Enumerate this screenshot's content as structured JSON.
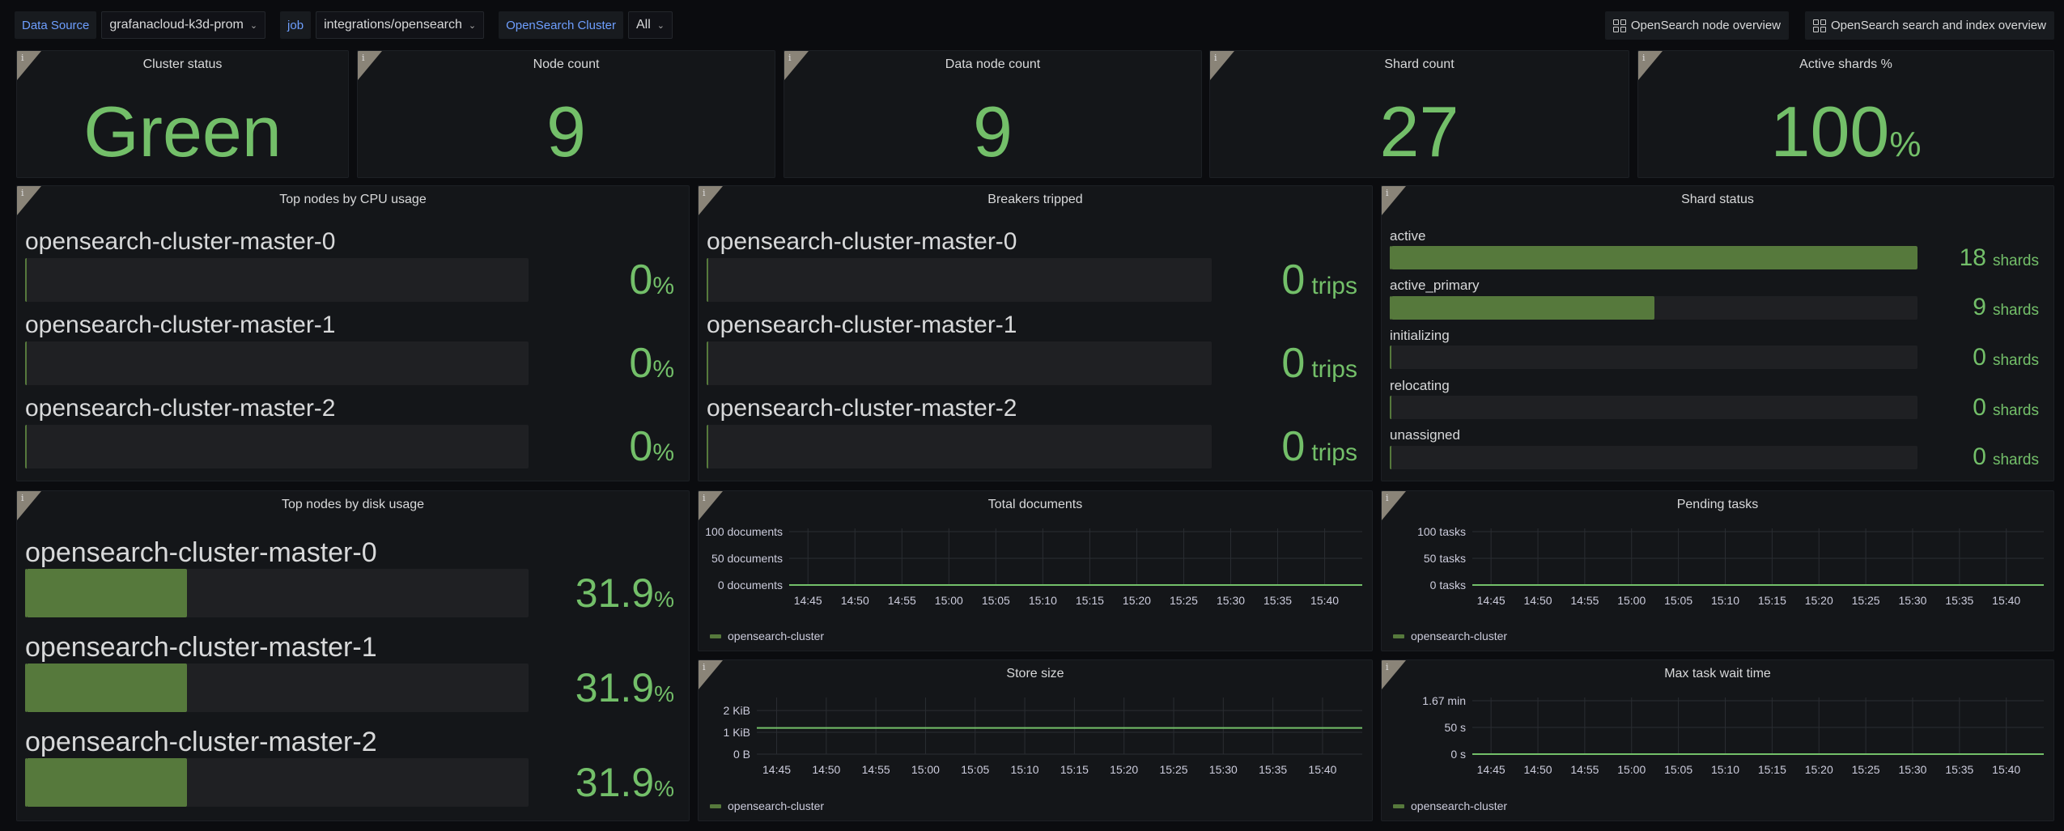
{
  "variables": [
    {
      "label": "Data Source",
      "value": "grafanacloud-k3d-prom"
    },
    {
      "label": "job",
      "value": "integrations/opensearch"
    },
    {
      "label": "OpenSearch Cluster",
      "value": "All"
    }
  ],
  "links": [
    {
      "label": "OpenSearch node overview",
      "icon": "dashboard-grid-icon"
    },
    {
      "label": "OpenSearch search and index overview",
      "icon": "dashboard-grid-icon"
    }
  ],
  "colors": {
    "value": "#73bf69",
    "bar_fill": "#56793c",
    "bar_track": "#1f2023",
    "panel": "#141619",
    "background": "#0b0c0f",
    "variable_label": "#6e9fff",
    "series": "#73bf69"
  },
  "info_icon": "i",
  "stats": [
    {
      "title": "Cluster status",
      "value": "Green",
      "unit": ""
    },
    {
      "title": "Node count",
      "value": "9",
      "unit": ""
    },
    {
      "title": "Data node count",
      "value": "9",
      "unit": ""
    },
    {
      "title": "Shard count",
      "value": "27",
      "unit": ""
    },
    {
      "title": "Active shards %",
      "value": "100",
      "unit": "%"
    }
  ],
  "cpu": {
    "title": "Top nodes by CPU usage",
    "max": 100,
    "rows": [
      {
        "name": "opensearch-cluster-master-0",
        "value": 0,
        "display": "0",
        "unit": "%"
      },
      {
        "name": "opensearch-cluster-master-1",
        "value": 0,
        "display": "0",
        "unit": "%"
      },
      {
        "name": "opensearch-cluster-master-2",
        "value": 0,
        "display": "0",
        "unit": "%"
      }
    ]
  },
  "breakers": {
    "title": "Breakers tripped",
    "max": 1,
    "rows": [
      {
        "name": "opensearch-cluster-master-0",
        "value": 0,
        "display": "0",
        "unit": "trips"
      },
      {
        "name": "opensearch-cluster-master-1",
        "value": 0,
        "display": "0",
        "unit": "trips"
      },
      {
        "name": "opensearch-cluster-master-2",
        "value": 0,
        "display": "0",
        "unit": "trips"
      }
    ]
  },
  "shards": {
    "title": "Shard status",
    "max": 18,
    "rows": [
      {
        "name": "active",
        "value": 18,
        "display": "18",
        "unit": "shards"
      },
      {
        "name": "active_primary",
        "value": 9,
        "display": "9",
        "unit": "shards"
      },
      {
        "name": "initializing",
        "value": 0,
        "display": "0",
        "unit": "shards"
      },
      {
        "name": "relocating",
        "value": 0,
        "display": "0",
        "unit": "shards"
      },
      {
        "name": "unassigned",
        "value": 0,
        "display": "0",
        "unit": "shards"
      }
    ]
  },
  "disk": {
    "title": "Top nodes by disk usage",
    "max": 100,
    "rows": [
      {
        "name": "opensearch-cluster-master-0",
        "value": 31.9,
        "display": "31.9",
        "unit": "%"
      },
      {
        "name": "opensearch-cluster-master-1",
        "value": 31.9,
        "display": "31.9",
        "unit": "%"
      },
      {
        "name": "opensearch-cluster-master-2",
        "value": 31.9,
        "display": "31.9",
        "unit": "%"
      }
    ]
  },
  "chart_data": [
    {
      "type": "line",
      "title": "Total documents",
      "x_ticks": [
        "14:45",
        "14:50",
        "14:55",
        "15:00",
        "15:05",
        "15:10",
        "15:15",
        "15:20",
        "15:25",
        "15:30",
        "15:35",
        "15:40"
      ],
      "xlim": [
        "14:43",
        "15:44"
      ],
      "ylim": [
        0,
        100
      ],
      "y_ticks": [
        {
          "v": 0,
          "label": "0 documents"
        },
        {
          "v": 50,
          "label": "50 documents"
        },
        {
          "v": 100,
          "label": "100 documents"
        }
      ],
      "grid": true,
      "legend": "bottom-left",
      "series": [
        {
          "name": "opensearch-cluster",
          "x": [
            "14:43",
            "15:44"
          ],
          "y": [
            0,
            0
          ]
        }
      ]
    },
    {
      "type": "line",
      "title": "Pending tasks",
      "x_ticks": [
        "14:45",
        "14:50",
        "14:55",
        "15:00",
        "15:05",
        "15:10",
        "15:15",
        "15:20",
        "15:25",
        "15:30",
        "15:35",
        "15:40"
      ],
      "xlim": [
        "14:43",
        "15:44"
      ],
      "ylim": [
        0,
        100
      ],
      "y_ticks": [
        {
          "v": 0,
          "label": "0 tasks"
        },
        {
          "v": 50,
          "label": "50 tasks"
        },
        {
          "v": 100,
          "label": "100 tasks"
        }
      ],
      "grid": true,
      "legend": "bottom-left",
      "series": [
        {
          "name": "opensearch-cluster",
          "x": [
            "14:43",
            "15:44"
          ],
          "y": [
            0,
            0
          ]
        }
      ]
    },
    {
      "type": "line",
      "title": "Store size",
      "x_ticks": [
        "14:45",
        "14:50",
        "14:55",
        "15:00",
        "15:05",
        "15:10",
        "15:15",
        "15:20",
        "15:25",
        "15:30",
        "15:35",
        "15:40"
      ],
      "xlim": [
        "14:43",
        "15:44"
      ],
      "ylim": [
        0,
        2.45
      ],
      "y_ticks": [
        {
          "v": 0,
          "label": "0 B"
        },
        {
          "v": 1,
          "label": "1 KiB"
        },
        {
          "v": 2,
          "label": "2 KiB"
        }
      ],
      "grid": true,
      "legend": "bottom-left",
      "series": [
        {
          "name": "opensearch-cluster",
          "x": [
            "14:43",
            "15:44"
          ],
          "y": [
            1.2,
            1.2
          ]
        }
      ]
    },
    {
      "type": "line",
      "title": "Max task wait time",
      "x_ticks": [
        "14:45",
        "14:50",
        "14:55",
        "15:00",
        "15:05",
        "15:10",
        "15:15",
        "15:20",
        "15:25",
        "15:30",
        "15:35",
        "15:40"
      ],
      "xlim": [
        "14:43",
        "15:44"
      ],
      "ylim": [
        0,
        100
      ],
      "y_ticks": [
        {
          "v": 0,
          "label": "0 s"
        },
        {
          "v": 50,
          "label": "50 s"
        },
        {
          "v": 100,
          "label": "1.67 min"
        }
      ],
      "grid": true,
      "legend": "bottom-left",
      "series": [
        {
          "name": "opensearch-cluster",
          "x": [
            "14:43",
            "15:44"
          ],
          "y": [
            0,
            0
          ]
        }
      ]
    }
  ]
}
